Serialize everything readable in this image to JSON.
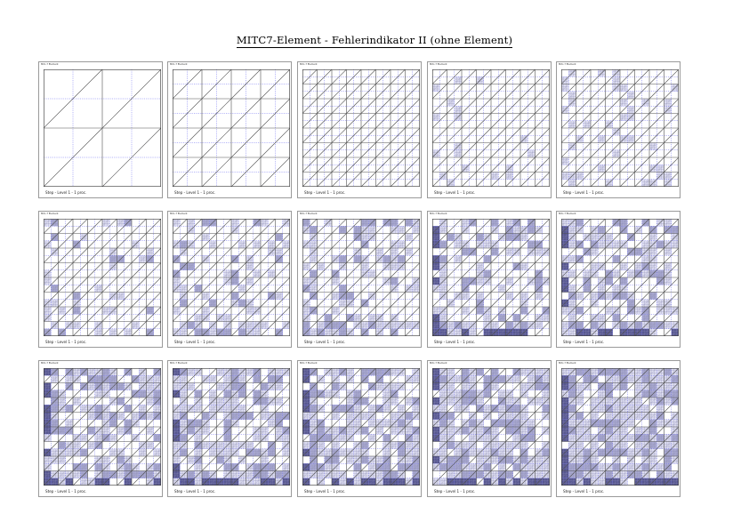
{
  "title": "MITC7-Element - Fehlerindikator II (ohne Element)",
  "panel_header": "Mitc-7 Element",
  "panel_footer": "Step - Level 1 - 1 proc.",
  "colors": {
    "background": "#ffffff",
    "frame": "#9a9a9a",
    "edge": "#505050",
    "error_indicator_line": "#6f6ff0",
    "fill_light": "#dcdcf0",
    "fill_medium": "#a8a8cf",
    "fill_dark": "#575791"
  },
  "grid": {
    "columns": 5,
    "rows": 3
  },
  "panels": [
    {
      "step": 1,
      "base_divisions": 2,
      "refine": 0,
      "fill": 0
    },
    {
      "step": 2,
      "base_divisions": 4,
      "refine": 0,
      "fill": 0
    },
    {
      "step": 3,
      "base_divisions": 8,
      "refine": 0,
      "fill": 0
    },
    {
      "step": 4,
      "base_divisions": 8,
      "refine": 1,
      "fill": 1
    },
    {
      "step": 5,
      "base_divisions": 8,
      "refine": 2,
      "fill": 2
    },
    {
      "step": 6,
      "base_divisions": 8,
      "refine": 3,
      "fill": 3
    },
    {
      "step": 7,
      "base_divisions": 8,
      "refine": 4,
      "fill": 4
    },
    {
      "step": 8,
      "base_divisions": 8,
      "refine": 5,
      "fill": 5
    },
    {
      "step": 9,
      "base_divisions": 8,
      "refine": 6,
      "fill": 6
    },
    {
      "step": 10,
      "base_divisions": 8,
      "refine": 7,
      "fill": 7
    },
    {
      "step": 11,
      "base_divisions": 8,
      "refine": 8,
      "fill": 8
    },
    {
      "step": 12,
      "base_divisions": 8,
      "refine": 9,
      "fill": 9
    },
    {
      "step": 13,
      "base_divisions": 8,
      "refine": 10,
      "fill": 10
    },
    {
      "step": 14,
      "base_divisions": 8,
      "refine": 11,
      "fill": 11
    },
    {
      "step": 15,
      "base_divisions": 8,
      "refine": 12,
      "fill": 12
    }
  ]
}
